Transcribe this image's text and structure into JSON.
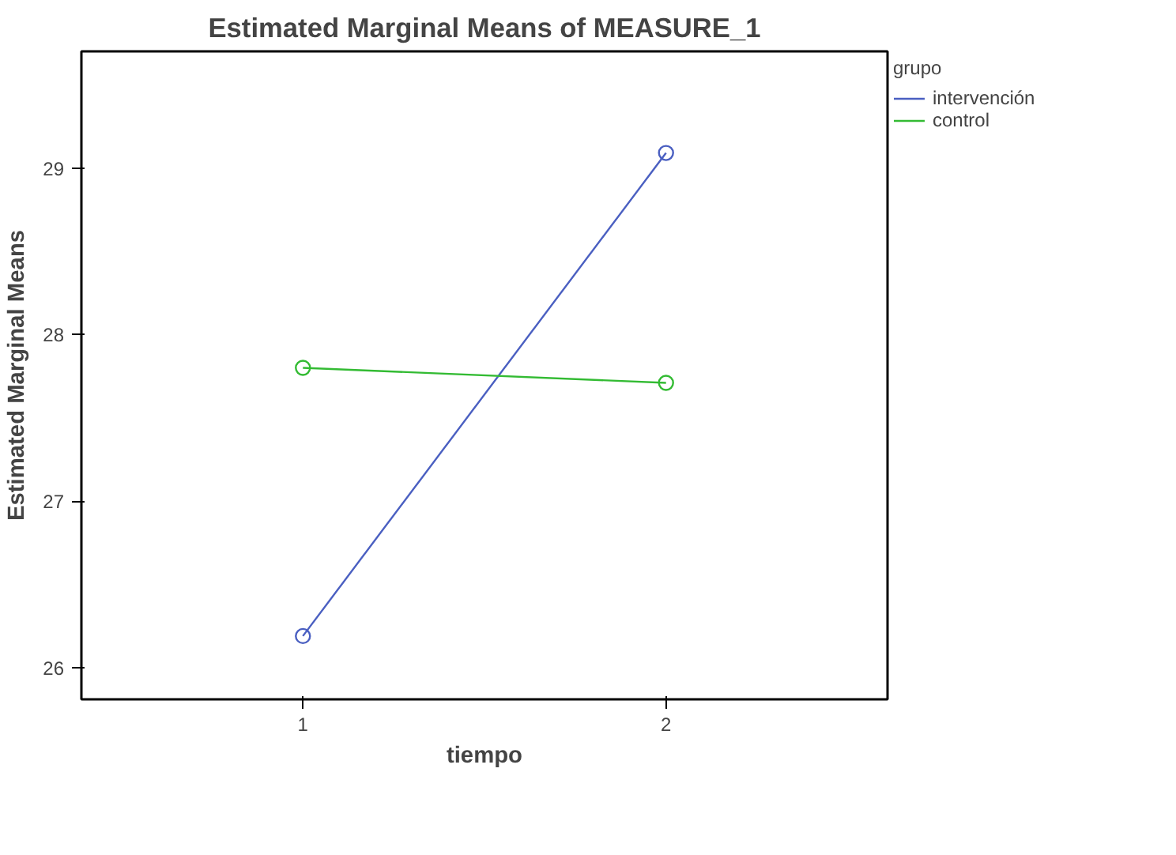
{
  "chart_data": {
    "type": "line",
    "title": "Estimated Marginal Means of MEASURE_1",
    "xlabel": "tiempo",
    "ylabel": "Estimated Marginal Means",
    "legend_title": "grupo",
    "x": [
      1,
      2
    ],
    "series": [
      {
        "name": "intervención",
        "color": "#4a5fc1",
        "values": [
          26.19,
          29.09
        ]
      },
      {
        "name": "control",
        "color": "#33bb33",
        "values": [
          27.8,
          27.71
        ]
      }
    ],
    "xlim": [
      0.39,
      2.61
    ],
    "xticks": [
      1,
      2
    ],
    "ylim": [
      25.81,
      29.7
    ],
    "yticks": [
      26,
      27,
      28,
      29
    ],
    "marker": "circle",
    "grid": false,
    "legend": "right"
  }
}
